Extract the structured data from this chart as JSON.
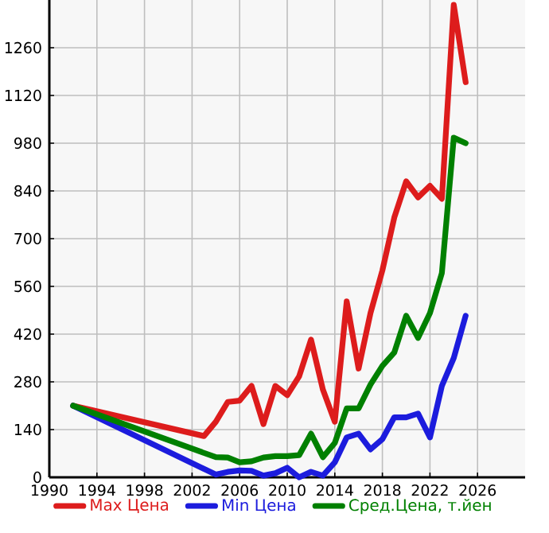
{
  "chart_data": {
    "type": "line",
    "x": [
      1992,
      2003,
      2004,
      2005,
      2006,
      2007,
      2008,
      2009,
      2010,
      2011,
      2012,
      2013,
      2014,
      2015,
      2016,
      2017,
      2018,
      2019,
      2020,
      2021,
      2022,
      2023,
      2024,
      2025
    ],
    "series": [
      {
        "name": "Max Цена",
        "color": "#dd1c1c",
        "values": [
          210,
          121,
          163,
          221,
          225,
          268,
          156,
          268,
          241,
          296,
          404,
          257,
          163,
          516,
          319,
          482,
          607,
          762,
          868,
          821,
          855,
          817,
          1386,
          1159
        ]
      },
      {
        "name": "Min Цена",
        "color": "#1c1cdd",
        "x": [
          1992,
          2004,
          2005,
          2006,
          2007,
          2008,
          2009,
          2010,
          2011,
          2012,
          2013,
          2014,
          2015,
          2016,
          2017,
          2018,
          2019,
          2020,
          2021,
          2022,
          2023,
          2024,
          2025
        ],
        "values": [
          210,
          8,
          16,
          20,
          19,
          5,
          12,
          28,
          0,
          16,
          5,
          44,
          117,
          128,
          82,
          112,
          176,
          176,
          187,
          117,
          268,
          350,
          474
        ]
      },
      {
        "name": "Сред.Цена, т.йен",
        "color": "#008000",
        "x": [
          1992,
          2004,
          2005,
          2006,
          2007,
          2008,
          2009,
          2010,
          2011,
          2012,
          2013,
          2014,
          2015,
          2016,
          2017,
          2018,
          2019,
          2020,
          2021,
          2022,
          2023,
          2024,
          2025
        ],
        "values": [
          210,
          59,
          58,
          44,
          47,
          58,
          62,
          62,
          65,
          128,
          59,
          101,
          202,
          202,
          272,
          327,
          366,
          474,
          409,
          482,
          599,
          996,
          980
        ]
      }
    ],
    "xlim": [
      1990,
      2030
    ],
    "xticks": [
      1990,
      1994,
      1998,
      2002,
      2006,
      2010,
      2014,
      2018,
      2022,
      2026
    ],
    "ylim": [
      0,
      1400
    ],
    "yticks": [
      0,
      140,
      280,
      420,
      560,
      700,
      840,
      980,
      1120,
      1260
    ],
    "grid": true,
    "legend": "bottom",
    "line_style": "solid"
  }
}
